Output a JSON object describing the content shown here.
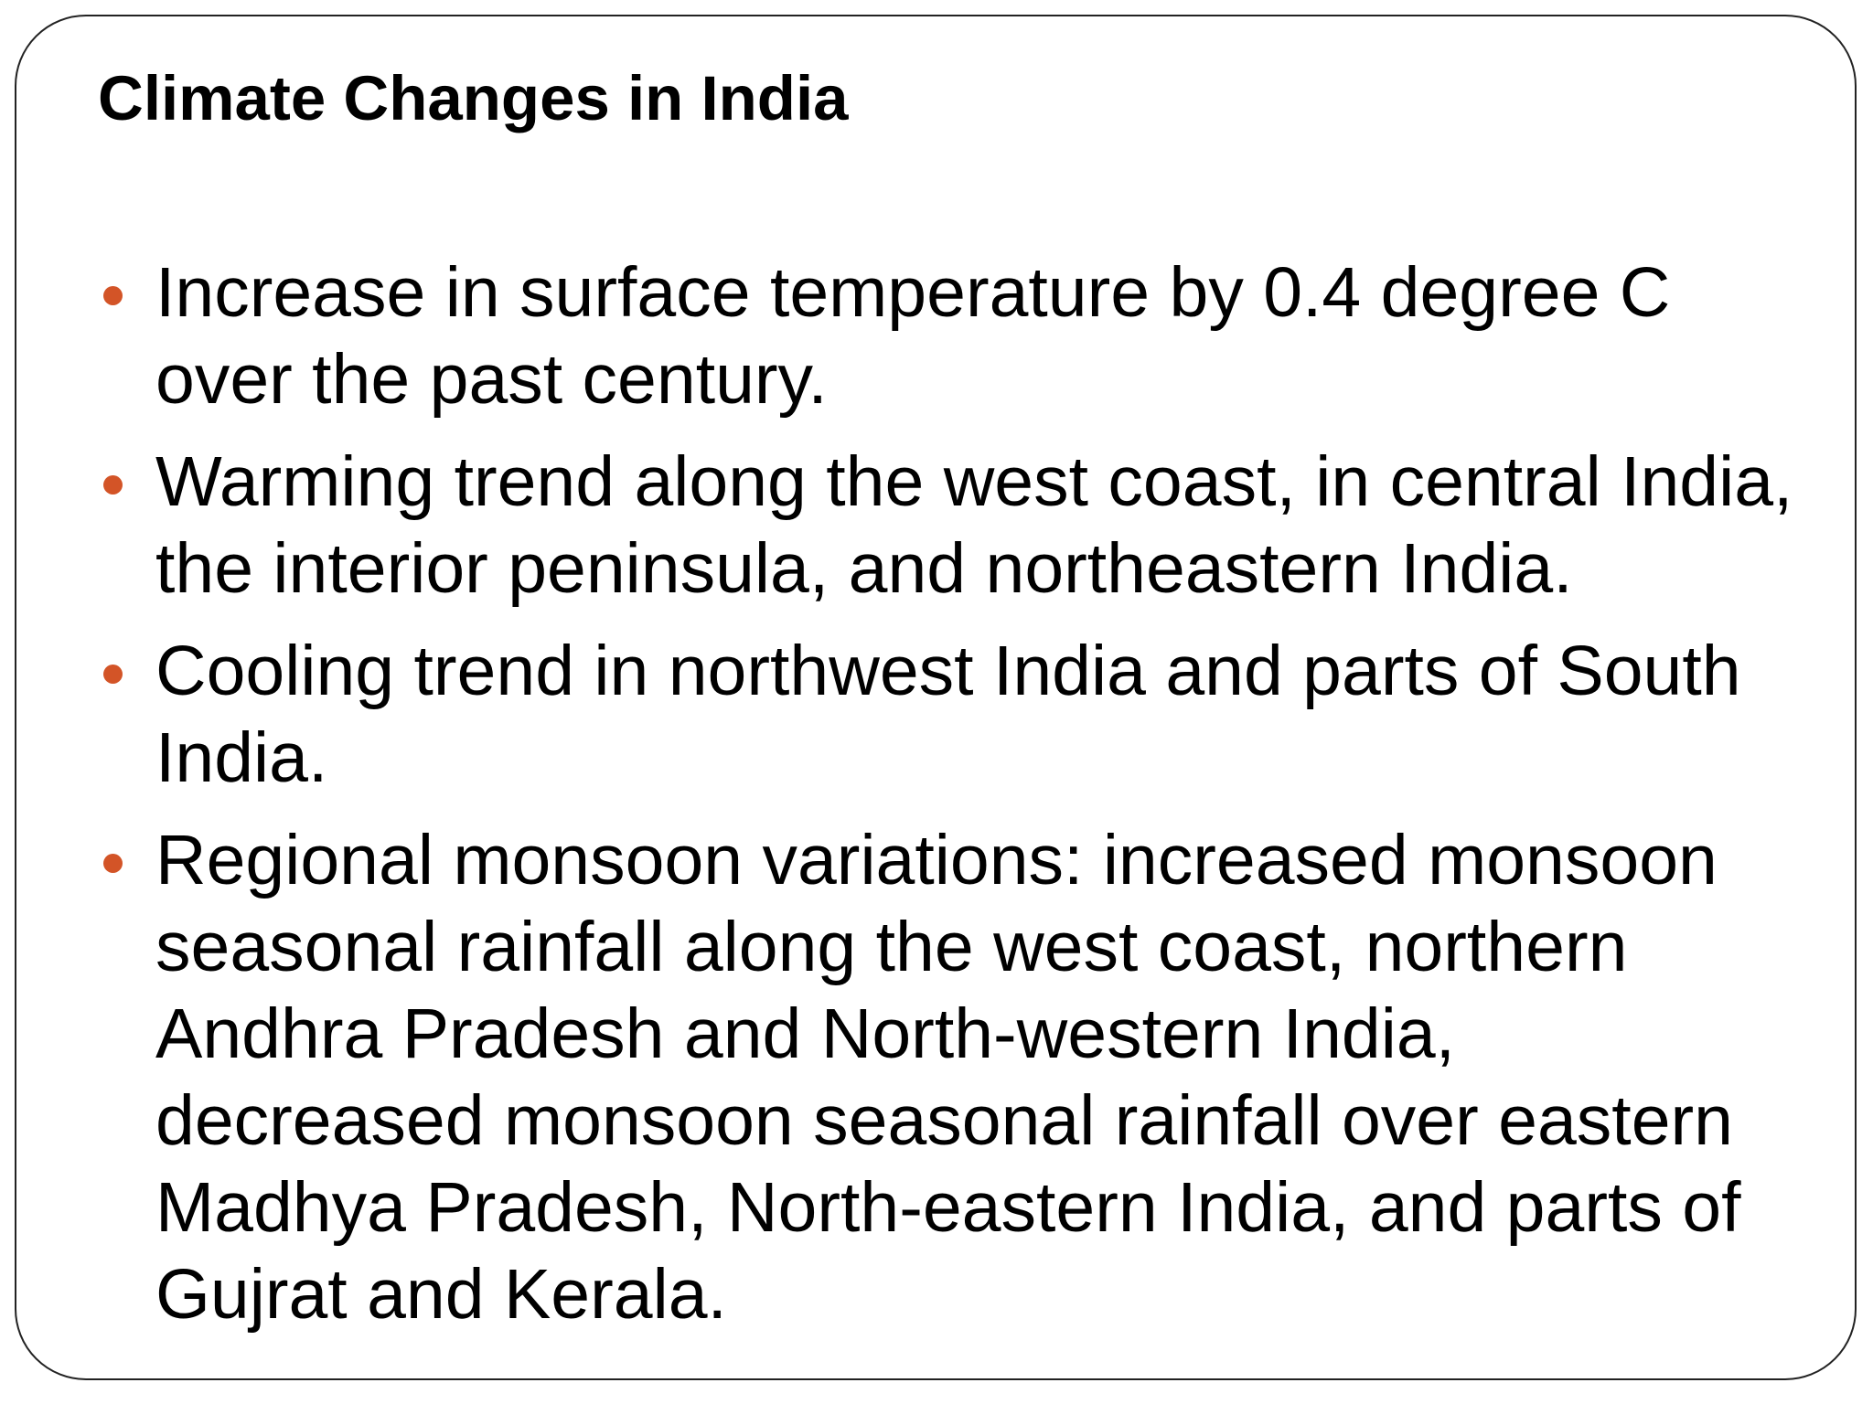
{
  "title": "Climate Changes in India",
  "bullets": [
    "Increase in surface temperature by 0.4 degree C over the past century.",
    "Warming trend along the west coast, in central India, the interior peninsula, and northeastern India.",
    "Cooling trend in northwest India and parts of South India.",
    "Regional monsoon variations: increased monsoon seasonal rainfall along the west coast, northern Andhra Pradesh and North-western India, decreased monsoon seasonal rainfall over eastern Madhya Pradesh, North-eastern India, and parts of Gujrat and Kerala."
  ]
}
